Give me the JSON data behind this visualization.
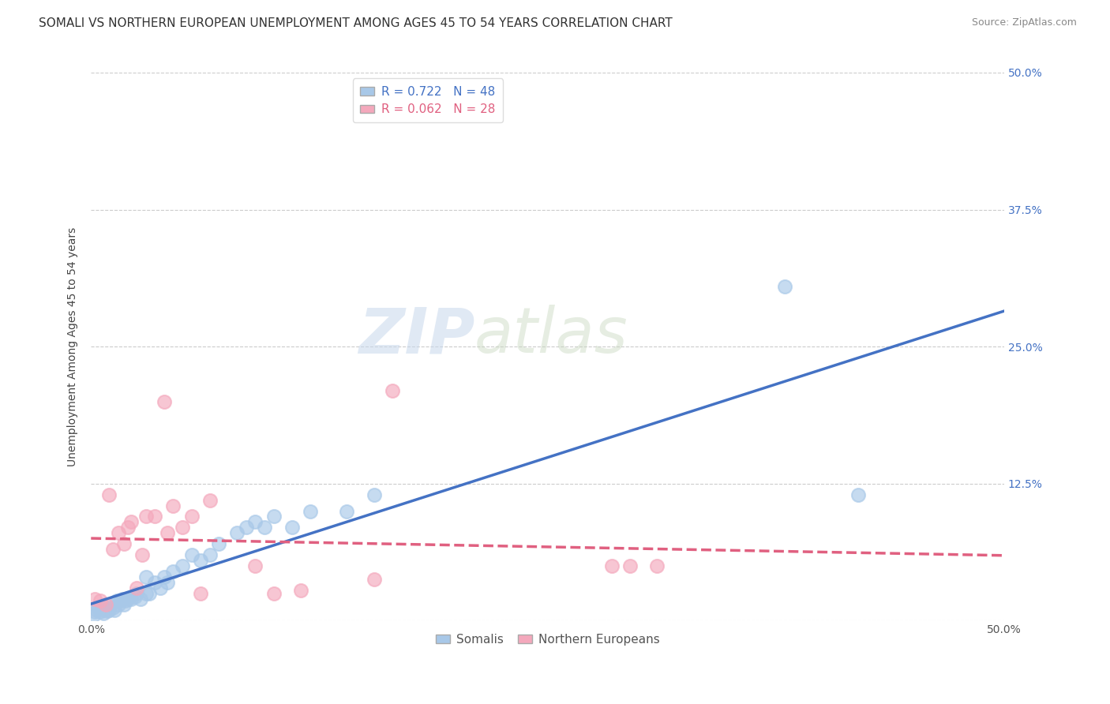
{
  "title": "SOMALI VS NORTHERN EUROPEAN UNEMPLOYMENT AMONG AGES 45 TO 54 YEARS CORRELATION CHART",
  "source": "Source: ZipAtlas.com",
  "ylabel": "Unemployment Among Ages 45 to 54 years",
  "xlim": [
    0,
    0.5
  ],
  "ylim": [
    0,
    0.5
  ],
  "xticks": [
    0.0,
    0.125,
    0.25,
    0.375,
    0.5
  ],
  "xticklabels": [
    "0.0%",
    "",
    "",
    "",
    "50.0%"
  ],
  "yticks": [
    0.0,
    0.125,
    0.25,
    0.375,
    0.5
  ],
  "yticklabels": [
    "",
    "12.5%",
    "25.0%",
    "37.5%",
    "50.0%"
  ],
  "somali_R": 0.722,
  "somali_N": 48,
  "northern_R": 0.062,
  "northern_N": 28,
  "somali_color": "#a8c8e8",
  "northern_color": "#f4a8bc",
  "somali_line_color": "#4472c4",
  "northern_line_color": "#e06080",
  "background_color": "#ffffff",
  "watermark_text": "ZIP",
  "watermark_text2": "atlas",
  "somali_x": [
    0.001,
    0.002,
    0.003,
    0.004,
    0.005,
    0.006,
    0.007,
    0.008,
    0.009,
    0.01,
    0.01,
    0.012,
    0.013,
    0.014,
    0.015,
    0.016,
    0.017,
    0.018,
    0.019,
    0.02,
    0.022,
    0.024,
    0.025,
    0.027,
    0.03,
    0.03,
    0.032,
    0.035,
    0.038,
    0.04,
    0.042,
    0.045,
    0.05,
    0.055,
    0.06,
    0.065,
    0.07,
    0.08,
    0.085,
    0.09,
    0.095,
    0.1,
    0.11,
    0.12,
    0.14,
    0.155,
    0.38,
    0.42
  ],
  "somali_y": [
    0.005,
    0.008,
    0.01,
    0.012,
    0.008,
    0.01,
    0.007,
    0.012,
    0.009,
    0.01,
    0.015,
    0.012,
    0.01,
    0.018,
    0.015,
    0.018,
    0.02,
    0.015,
    0.018,
    0.02,
    0.02,
    0.022,
    0.025,
    0.02,
    0.025,
    0.04,
    0.025,
    0.035,
    0.03,
    0.04,
    0.035,
    0.045,
    0.05,
    0.06,
    0.055,
    0.06,
    0.07,
    0.08,
    0.085,
    0.09,
    0.085,
    0.095,
    0.085,
    0.1,
    0.1,
    0.115,
    0.305,
    0.115
  ],
  "northern_x": [
    0.002,
    0.005,
    0.008,
    0.01,
    0.012,
    0.015,
    0.018,
    0.02,
    0.022,
    0.025,
    0.028,
    0.03,
    0.035,
    0.04,
    0.042,
    0.045,
    0.05,
    0.055,
    0.06,
    0.065,
    0.09,
    0.1,
    0.115,
    0.155,
    0.165,
    0.285,
    0.295,
    0.31
  ],
  "northern_y": [
    0.02,
    0.018,
    0.015,
    0.115,
    0.065,
    0.08,
    0.07,
    0.085,
    0.09,
    0.03,
    0.06,
    0.095,
    0.095,
    0.2,
    0.08,
    0.105,
    0.085,
    0.095,
    0.025,
    0.11,
    0.05,
    0.025,
    0.028,
    0.038,
    0.21,
    0.05,
    0.05,
    0.05
  ],
  "title_fontsize": 11,
  "source_fontsize": 9,
  "axis_label_fontsize": 10,
  "tick_fontsize": 10,
  "legend_fontsize": 11
}
